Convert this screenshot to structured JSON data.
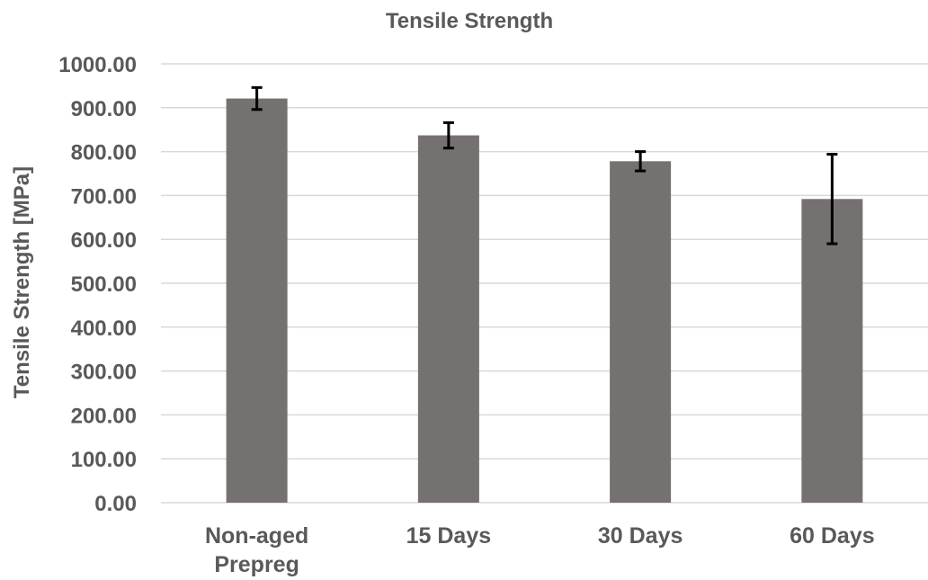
{
  "chart_data": {
    "type": "bar",
    "title": "Tensile Strength",
    "xlabel": "",
    "ylabel": "Tensile Strength [MPa]",
    "categories": [
      "Non-aged Prepreg",
      "15 Days",
      "30 Days",
      "60 Days"
    ],
    "category_lines": [
      [
        "Non-aged",
        "Prepreg"
      ],
      [
        "15 Days"
      ],
      [
        "30 Days"
      ],
      [
        "60 Days"
      ]
    ],
    "values": [
      921,
      837,
      778,
      692
    ],
    "error": [
      25,
      29,
      22,
      102
    ],
    "ylim": [
      0,
      1000
    ],
    "ytick_step": 100,
    "ytick_labels": [
      "0.00",
      "100.00",
      "200.00",
      "300.00",
      "400.00",
      "500.00",
      "600.00",
      "700.00",
      "800.00",
      "900.00",
      "1000.00"
    ],
    "grid": true,
    "legend": "none",
    "colors": {
      "bar": "#767171",
      "grid": "#d9d9d9",
      "text": "#595959",
      "error_bar": "#000000"
    }
  }
}
